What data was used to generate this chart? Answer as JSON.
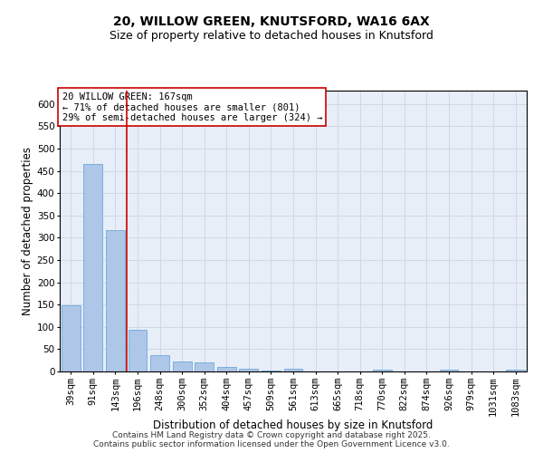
{
  "title1": "20, WILLOW GREEN, KNUTSFORD, WA16 6AX",
  "title2": "Size of property relative to detached houses in Knutsford",
  "xlabel": "Distribution of detached houses by size in Knutsford",
  "ylabel": "Number of detached properties",
  "categories": [
    "39sqm",
    "91sqm",
    "143sqm",
    "196sqm",
    "248sqm",
    "300sqm",
    "352sqm",
    "404sqm",
    "457sqm",
    "509sqm",
    "561sqm",
    "613sqm",
    "665sqm",
    "718sqm",
    "770sqm",
    "822sqm",
    "874sqm",
    "926sqm",
    "979sqm",
    "1031sqm",
    "1083sqm"
  ],
  "values": [
    148,
    466,
    318,
    93,
    37,
    22,
    20,
    11,
    7,
    3,
    6,
    0,
    0,
    0,
    5,
    0,
    0,
    5,
    0,
    0,
    5
  ],
  "bar_color": "#aec6e8",
  "bar_edge_color": "#5a9fd4",
  "grid_color": "#d0d8e8",
  "background_color": "#e8eef8",
  "vline_x": 2.5,
  "vline_color": "#cc0000",
  "annotation_box_text": "20 WILLOW GREEN: 167sqm\n← 71% of detached houses are smaller (801)\n29% of semi-detached houses are larger (324) →",
  "annotation_box_color": "#cc0000",
  "annotation_text_color": "#000000",
  "footer_text": "Contains HM Land Registry data © Crown copyright and database right 2025.\nContains public sector information licensed under the Open Government Licence v3.0.",
  "ylim": [
    0,
    630
  ],
  "yticks": [
    0,
    50,
    100,
    150,
    200,
    250,
    300,
    350,
    400,
    450,
    500,
    550,
    600
  ],
  "title1_fontsize": 10,
  "title2_fontsize": 9,
  "axis_label_fontsize": 8.5,
  "tick_fontsize": 7.5,
  "annotation_fontsize": 7.5,
  "footer_fontsize": 6.5
}
